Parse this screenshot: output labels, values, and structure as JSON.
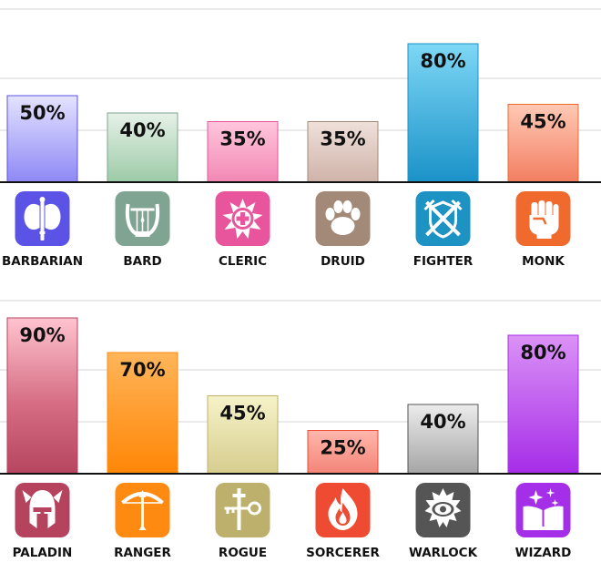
{
  "chart_data": [
    {
      "type": "bar",
      "ylim": [
        0,
        100
      ],
      "grid": true,
      "categories": [
        "BARBARIAN",
        "BARD",
        "CLERIC",
        "DRUID",
        "FIGHTER",
        "MONK"
      ],
      "icons": [
        "double-axe-icon",
        "lyre-icon",
        "holy-cross-icon",
        "paw-icon",
        "crossed-swords-shield-icon",
        "fist-icon"
      ],
      "colors": [
        "#5b53e6",
        "#7fa592",
        "#e8559d",
        "#a38a78",
        "#1d93c4",
        "#ef6a2c"
      ],
      "values": [
        50,
        40,
        35,
        35,
        80,
        45
      ],
      "labels": [
        "50%",
        "40%",
        "35%",
        "35%",
        "80%",
        "45%"
      ]
    },
    {
      "type": "bar",
      "ylim": [
        0,
        100
      ],
      "grid": true,
      "categories": [
        "PALADIN",
        "RANGER",
        "ROGUE",
        "SORCERER",
        "WARLOCK",
        "WIZARD"
      ],
      "icons": [
        "winged-helmet-icon",
        "bow-icon",
        "dagger-key-icon",
        "flame-icon",
        "eye-icon",
        "spellbook-icon"
      ],
      "colors": [
        "#b6435e",
        "#ff8a12",
        "#bcb06c",
        "#ef4a32",
        "#555555",
        "#a52fe8"
      ],
      "values": [
        90,
        70,
        45,
        25,
        40,
        80
      ],
      "labels": [
        "90%",
        "70%",
        "45%",
        "25%",
        "40%",
        "80%"
      ]
    }
  ]
}
